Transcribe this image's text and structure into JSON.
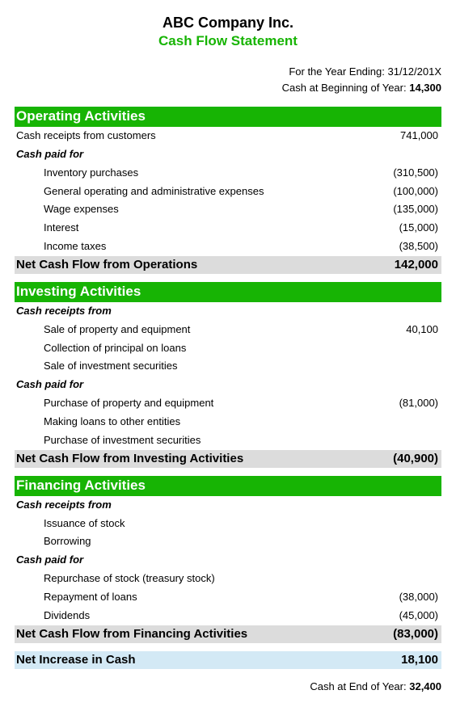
{
  "colors": {
    "accent_green": "#17b404",
    "total_bg": "#dcdcdc",
    "final_bg": "#d3e9f5",
    "text": "#000000",
    "background": "#ffffff"
  },
  "fonts": {
    "family": "Arial",
    "company_size": 18,
    "title_size": 17,
    "section_size": 17,
    "row_size": 13,
    "total_size": 15
  },
  "header": {
    "company": "ABC Company Inc.",
    "title": "Cash Flow Statement"
  },
  "meta": {
    "year_ending_label": "For the Year Ending:",
    "year_ending_value": "31/12/201X",
    "cash_begin_label": "Cash at Beginning of Year:",
    "cash_begin_value": "14,300"
  },
  "sections": {
    "operating": {
      "title": "Operating Activities",
      "receipts_label": "Cash receipts from customers",
      "receipts_value": "741,000",
      "paid_label": "Cash paid for",
      "items": [
        {
          "label": "Inventory purchases",
          "value": "(310,500)"
        },
        {
          "label": "General operating and administrative expenses",
          "value": "(100,000)"
        },
        {
          "label": "Wage expenses",
          "value": "(135,000)"
        },
        {
          "label": "Interest",
          "value": "(15,000)"
        },
        {
          "label": "Income taxes",
          "value": "(38,500)"
        }
      ],
      "total_label": "Net Cash Flow from Operations",
      "total_value": "142,000"
    },
    "investing": {
      "title": "Investing Activities",
      "receipts_label": "Cash receipts from",
      "receipts_items": [
        {
          "label": "Sale of property and equipment",
          "value": "40,100"
        },
        {
          "label": "Collection of principal on loans",
          "value": ""
        },
        {
          "label": "Sale of investment securities",
          "value": ""
        }
      ],
      "paid_label": "Cash paid for",
      "paid_items": [
        {
          "label": "Purchase of property and equipment",
          "value": "(81,000)"
        },
        {
          "label": "Making loans to other entities",
          "value": ""
        },
        {
          "label": "Purchase of investment securities",
          "value": ""
        }
      ],
      "total_label": "Net Cash Flow from Investing Activities",
      "total_value": "(40,900)"
    },
    "financing": {
      "title": "Financing Activities",
      "receipts_label": "Cash receipts from",
      "receipts_items": [
        {
          "label": "Issuance of stock",
          "value": ""
        },
        {
          "label": "Borrowing",
          "value": ""
        }
      ],
      "paid_label": "Cash paid for",
      "paid_items": [
        {
          "label": "Repurchase of stock (treasury stock)",
          "value": ""
        },
        {
          "label": "Repayment of loans",
          "value": "(38,000)"
        },
        {
          "label": "Dividends",
          "value": "(45,000)"
        }
      ],
      "total_label": "Net Cash Flow from Financing Activities",
      "total_value": "(83,000)"
    }
  },
  "net_increase": {
    "label": "Net Increase in Cash",
    "value": "18,100"
  },
  "footer": {
    "label": "Cash at End of Year:",
    "value": "32,400"
  }
}
